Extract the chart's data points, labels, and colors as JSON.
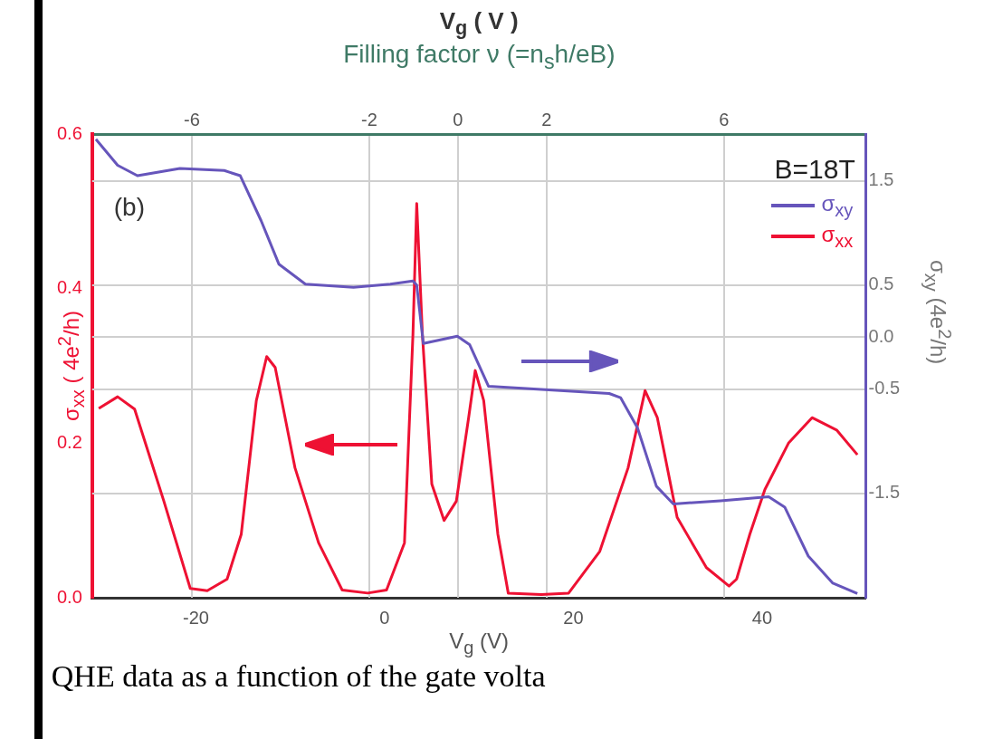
{
  "chart_data": {
    "type": "line",
    "title": "V$_{g}$ ( V )",
    "x2label": "Filling factor ν (=n$_{s}$h/eB)",
    "xlabel": "V$_{g}$ (V)",
    "ylabel": "σ$_{xx}$ ( 4e$^{2}$/h)",
    "y2label": "σ$_{xy}$ (4e$^{2}$/h)",
    "xlim": [
      -31,
      51
    ],
    "xticks": [
      -20,
      0,
      20,
      40
    ],
    "x2lim": [
      -8.25,
      9.2
    ],
    "x2ticks": [
      -6,
      -2,
      0,
      2,
      6
    ],
    "ylim": [
      0,
      0.6
    ],
    "yticks": [
      {
        "value": 0,
        "label": "0.0"
      },
      0.2,
      0.4,
      0.6
    ],
    "y2lim": [
      -2.5,
      1.95
    ],
    "y2ticks": [
      -1.5,
      -0.5,
      {
        "value": 0,
        "label": "0.0"
      },
      0.5,
      1.5
    ],
    "grid": true,
    "legend": "top right",
    "marker": "none",
    "line_style": "solid",
    "annotations": [
      "(b)",
      "B=18T",
      "QHE data as a function of the gate volta"
    ],
    "series": [
      {
        "name": "σ$_{xy}$",
        "color": "#6655bb",
        "axis": "y2",
        "x": [
          -30.6,
          -28.3,
          -26.2,
          -21.7,
          -17.0,
          -15.3,
          -13.1,
          -11.2,
          -8.4,
          -3.3,
          0.6,
          3.0,
          3.4,
          4.1,
          7.7,
          9.0,
          11.0,
          23.8,
          25.0,
          26.8,
          28.8,
          30.6,
          35.6,
          40.7,
          42.4,
          44.9,
          47.5,
          50.1
        ],
        "values": [
          1.9,
          1.65,
          1.55,
          1.62,
          1.6,
          1.55,
          1.12,
          0.7,
          0.51,
          0.48,
          0.51,
          0.54,
          0.5,
          -0.06,
          0.01,
          -0.07,
          -0.47,
          -0.54,
          -0.58,
          -0.87,
          -1.43,
          -1.6,
          -1.57,
          -1.53,
          -1.63,
          -2.1,
          -2.36,
          -2.46
        ]
      },
      {
        "name": "σ$_{xx}$",
        "color": "#ee1133",
        "axis": "y",
        "x": [
          -30.3,
          -28.3,
          -26.5,
          -23.4,
          -20.6,
          -18.8,
          -16.7,
          -15.2,
          -13.6,
          -12.5,
          -11.6,
          -9.5,
          -7.0,
          -4.5,
          -1.8,
          0.2,
          2.1,
          3.0,
          3.4,
          4.0,
          5.0,
          6.3,
          7.6,
          8.9,
          9.6,
          10.5,
          12.0,
          13.1,
          16.6,
          19.5,
          22.8,
          25.8,
          27.6,
          28.9,
          31.0,
          34.1,
          36.5,
          37.3,
          38.7,
          40.3,
          42.8,
          45.3,
          47.9,
          50.1
        ],
        "values": [
          0.245,
          0.26,
          0.244,
          0.125,
          0.012,
          0.009,
          0.024,
          0.082,
          0.255,
          0.312,
          0.298,
          0.168,
          0.071,
          0.01,
          0.006,
          0.01,
          0.071,
          0.341,
          0.51,
          0.341,
          0.147,
          0.1,
          0.125,
          0.233,
          0.294,
          0.255,
          0.082,
          0.006,
          0.004,
          0.006,
          0.06,
          0.168,
          0.268,
          0.233,
          0.104,
          0.039,
          0.015,
          0.024,
          0.082,
          0.14,
          0.2,
          0.233,
          0.217,
          0.185
        ]
      }
    ]
  }
}
